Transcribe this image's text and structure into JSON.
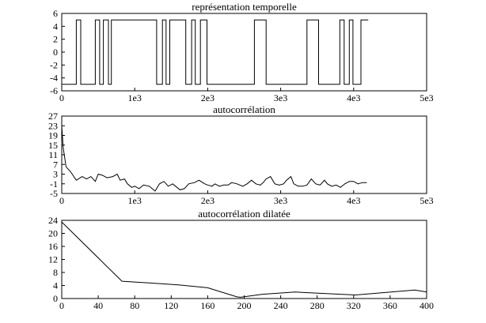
{
  "chart_data": [
    {
      "type": "line",
      "title": "représentation temporelle",
      "xlim": [
        0,
        5000
      ],
      "ylim": [
        -6,
        6
      ],
      "x_ticks": [
        0,
        1000,
        2000,
        3000,
        4000,
        5000
      ],
      "x_tick_labels": [
        "0",
        "1e3",
        "2e3",
        "3e3",
        "4e3",
        "5e3"
      ],
      "y_ticks": [
        6,
        4,
        2,
        0,
        -2,
        -4,
        -6
      ],
      "y_tick_labels": [
        "6",
        "4",
        "2",
        "0",
        "-2",
        "-4",
        "-6"
      ],
      "grid": false,
      "series": [
        {
          "x": [
            0,
            200,
            200,
            260,
            260,
            460,
            460,
            520,
            520,
            570,
            570,
            640,
            640,
            680,
            680,
            1300,
            1300,
            1380,
            1380,
            1430,
            1430,
            1480,
            1480,
            1700,
            1700,
            1780,
            1780,
            1830,
            1830,
            1900,
            1900,
            1990,
            1990,
            2640,
            2640,
            2800,
            2800,
            3360,
            3360,
            3520,
            3520,
            3810,
            3810,
            3870,
            3870,
            3940,
            3940,
            3990,
            3990,
            4100,
            4100,
            4200
          ],
          "values": [
            -5,
            -5,
            5,
            5,
            -5,
            -5,
            5,
            5,
            -5,
            -5,
            5,
            5,
            -5,
            -5,
            5,
            5,
            -5,
            -5,
            5,
            5,
            -5,
            -5,
            5,
            5,
            -5,
            -5,
            5,
            5,
            -5,
            -5,
            5,
            5,
            -5,
            -5,
            5,
            5,
            -5,
            -5,
            5,
            5,
            -5,
            -5,
            5,
            5,
            -5,
            -5,
            5,
            5,
            -5,
            -5,
            5,
            5
          ]
        }
      ]
    },
    {
      "type": "line",
      "title": "autocorrélation",
      "xlim": [
        0,
        5000
      ],
      "ylim": [
        -5,
        27
      ],
      "x_ticks": [
        0,
        1000,
        2000,
        3000,
        4000,
        5000
      ],
      "x_tick_labels": [
        "0",
        "1e3",
        "2e3",
        "3e3",
        "4e3",
        "5e3"
      ],
      "y_ticks": [
        27,
        23,
        19,
        15,
        11,
        7,
        3,
        -1,
        -5
      ],
      "y_tick_labels": [
        "27",
        "23",
        "19",
        "15",
        "11",
        "7",
        "3",
        "-1",
        "-5"
      ],
      "grid": false,
      "series": [
        {
          "x": [
            0,
            20,
            60,
            120,
            200,
            280,
            340,
            400,
            460,
            500,
            560,
            620,
            700,
            760,
            800,
            860,
            900,
            960,
            1000,
            1060,
            1120,
            1200,
            1240,
            1280,
            1340,
            1400,
            1460,
            1520,
            1560,
            1620,
            1680,
            1740,
            1820,
            1880,
            1960,
            2000,
            2060,
            2100,
            2160,
            2220,
            2280,
            2330,
            2400,
            2480,
            2540,
            2600,
            2660,
            2720,
            2760,
            2800,
            2860,
            2920,
            2980,
            3040,
            3080,
            3140,
            3180,
            3240,
            3300,
            3360,
            3420,
            3480,
            3540,
            3600,
            3640,
            3700,
            3760,
            3820,
            3880,
            3940,
            4000,
            4060,
            4120,
            4180
          ],
          "values": [
            23,
            14,
            6,
            4,
            0.5,
            2,
            1,
            2,
            0,
            3,
            2.5,
            1.5,
            2,
            3,
            0.5,
            1,
            -1,
            -2.5,
            -2,
            -3,
            -1.5,
            -2,
            -3,
            -4,
            -1,
            0,
            -2,
            -1,
            -2,
            -3.5,
            -3,
            -1,
            -0.5,
            0.5,
            -1,
            -1.5,
            -2,
            -1,
            -2,
            -1.5,
            -1.5,
            -0.5,
            -1,
            -2,
            -1,
            0.5,
            -1,
            -1.5,
            -0.5,
            1,
            2,
            -1,
            -1.5,
            -1,
            0.5,
            2,
            -1,
            -2,
            -2,
            -1.5,
            1,
            -1,
            -1.5,
            0.5,
            -1,
            -2,
            -1.5,
            -2.5,
            -1,
            0,
            0,
            -1,
            -0.5,
            -0.5
          ]
        },
        {
          "x": [
            4180,
            5000
          ],
          "values": [
            -5,
            -5
          ]
        }
      ]
    },
    {
      "type": "line",
      "title": "autocorrélation dilatée",
      "xlim": [
        0,
        400
      ],
      "ylim": [
        0,
        24
      ],
      "x_ticks": [
        0,
        40,
        80,
        120,
        160,
        200,
        240,
        280,
        320,
        360,
        400
      ],
      "x_tick_labels": [
        "0",
        "40",
        "80",
        "120",
        "160",
        "200",
        "240",
        "280",
        "320",
        "360",
        "400"
      ],
      "y_ticks": [
        24,
        20,
        16,
        12,
        8,
        4,
        0
      ],
      "y_tick_labels": [
        "24",
        "20",
        "16",
        "12",
        "8",
        "4",
        "0"
      ],
      "grid": false,
      "series": [
        {
          "x": [
            0,
            66,
            96,
            128,
            160,
            192,
            196,
            220,
            256,
            290,
            322,
            352,
            387,
            400
          ],
          "values": [
            23.5,
            5.3,
            4.8,
            4.2,
            3.3,
            0.5,
            0.4,
            1.3,
            2.0,
            1.5,
            1.1,
            1.8,
            2.6,
            2.0
          ]
        }
      ]
    }
  ]
}
